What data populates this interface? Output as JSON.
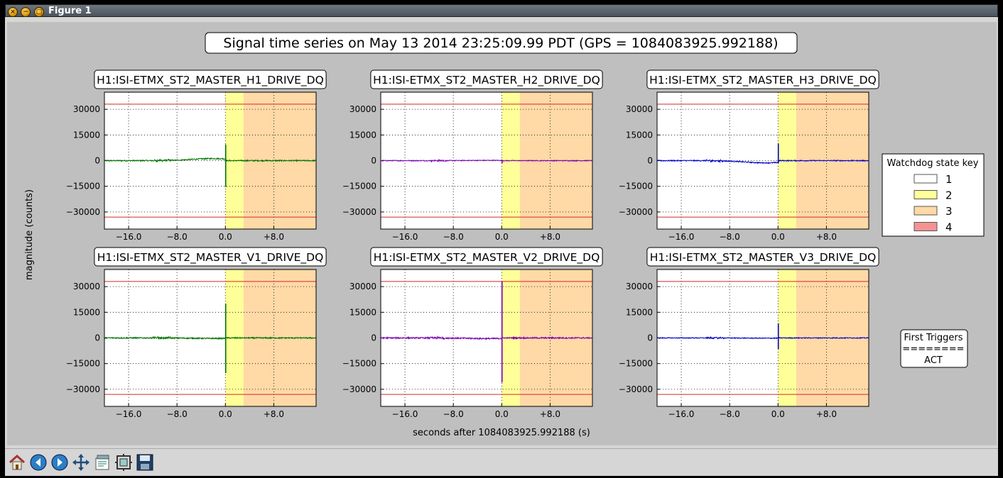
{
  "window": {
    "title": "Figure 1"
  },
  "chart_data": {
    "type": "line",
    "title": "Signal time series on May 13 2014 23:25:09.99 PDT (GPS = 1084083925.992188)",
    "xlabel": "seconds after 1084083925.992188 (s)",
    "ylabel": "magnitude (counts)",
    "xlim": [
      -20,
      15
    ],
    "ylim": [
      -40000,
      40000
    ],
    "xticks": [
      -16,
      -8,
      0,
      8
    ],
    "xtick_labels": [
      "−16.0",
      "−8.0",
      "0.0",
      "+8.0"
    ],
    "yticks": [
      30000,
      15000,
      0,
      -15000,
      -30000
    ],
    "ytick_labels": [
      "30000",
      "15000",
      "0",
      "−15000",
      "−30000"
    ],
    "threshold_lines": [
      33000,
      -33000
    ],
    "threshold_color": "#d62728",
    "grid": true,
    "state_regions": [
      {
        "state": "2",
        "x_start": 0,
        "x_end": 3,
        "color": "#ffff99"
      },
      {
        "state": "3",
        "x_start": 3,
        "x_end": 15,
        "color": "#ffd9a6"
      }
    ],
    "panels": [
      {
        "title": "H1:ISI-ETMX_ST2_MASTER_H1_DRIVE_DQ",
        "color": "#007300",
        "spike_max": 9500,
        "spike_min": -15500,
        "drift": 1200,
        "noise": 350
      },
      {
        "title": "H1:ISI-ETMX_ST2_MASTER_H2_DRIVE_DQ",
        "color": "#7a00b0",
        "spike_max": 600,
        "spike_min": -1500,
        "drift": 150,
        "noise": 250
      },
      {
        "title": "H1:ISI-ETMX_ST2_MASTER_H3_DRIVE_DQ",
        "color": "#0000cc",
        "spike_max": 10000,
        "spike_min": -1500,
        "drift": -1300,
        "noise": 300
      },
      {
        "title": "H1:ISI-ETMX_ST2_MASTER_V1_DRIVE_DQ",
        "color": "#007300",
        "spike_max": 20000,
        "spike_min": -20500,
        "drift": -300,
        "noise": 350
      },
      {
        "title": "H1:ISI-ETMX_ST2_MASTER_V2_DRIVE_DQ",
        "color": "#7a00b0",
        "spike_max": 33000,
        "spike_min": -26000,
        "drift": -400,
        "noise": 400
      },
      {
        "title": "H1:ISI-ETMX_ST2_MASTER_V3_DRIVE_DQ",
        "color": "#0000cc",
        "spike_max": 8500,
        "spike_min": -6500,
        "drift": -150,
        "noise": 250
      }
    ],
    "legend": {
      "title": "Watchdog state key",
      "placement": "right",
      "entries": [
        {
          "label": "1",
          "color": "#ffffff"
        },
        {
          "label": "2",
          "color": "#ffff99"
        },
        {
          "label": "3",
          "color": "#ffd9a6"
        },
        {
          "label": "4",
          "color": "#f59393"
        }
      ]
    },
    "triggers": {
      "title": "First Triggers",
      "separator": "========",
      "value": "ACT"
    }
  },
  "toolbar": {
    "buttons": [
      "home-icon",
      "back-icon",
      "forward-icon",
      "pan-icon",
      "configure-subplots-icon",
      "zoom-icon",
      "save-icon"
    ]
  }
}
